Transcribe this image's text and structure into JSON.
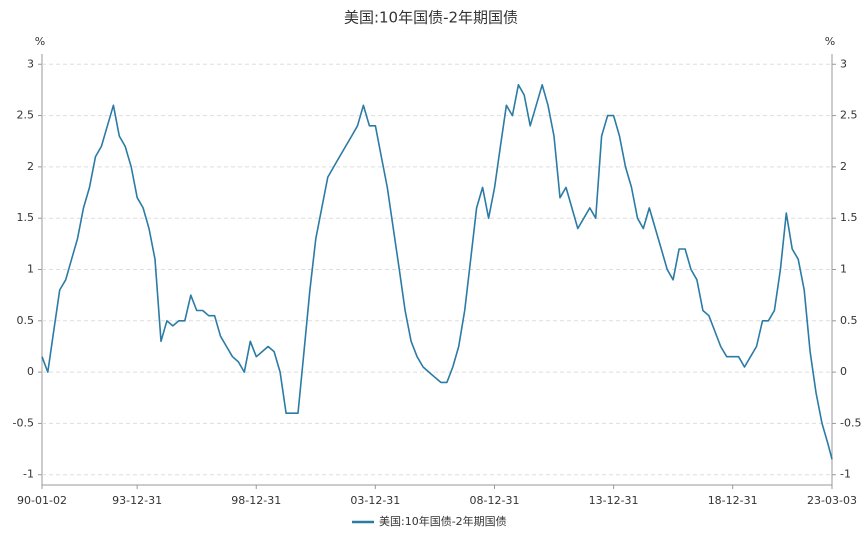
{
  "chart_data": {
    "type": "line",
    "title": "美国:10年国债-2年期国债",
    "y_unit": "%",
    "x": [
      "90-01-02",
      "90-04-01",
      "90-07-01",
      "90-10-01",
      "91-01-01",
      "91-04-01",
      "91-07-01",
      "91-10-01",
      "92-01-01",
      "92-04-01",
      "92-07-01",
      "92-10-01",
      "93-01-01",
      "93-04-01",
      "93-07-01",
      "93-10-01",
      "94-01-01",
      "94-04-01",
      "94-07-01",
      "94-10-01",
      "95-01-01",
      "95-04-01",
      "95-07-01",
      "95-10-01",
      "96-01-01",
      "96-04-01",
      "96-07-01",
      "96-10-01",
      "97-01-01",
      "97-04-01",
      "97-07-01",
      "97-10-01",
      "98-01-01",
      "98-04-01",
      "98-07-01",
      "98-10-01",
      "99-01-01",
      "99-04-01",
      "99-07-01",
      "99-10-01",
      "00-01-01",
      "00-04-01",
      "00-07-01",
      "00-10-01",
      "01-01-01",
      "01-04-01",
      "01-07-01",
      "01-10-01",
      "02-01-01",
      "02-04-01",
      "02-07-01",
      "02-10-01",
      "03-01-01",
      "03-04-01",
      "03-07-01",
      "03-10-01",
      "04-01-01",
      "04-04-01",
      "04-07-01",
      "04-10-01",
      "05-01-01",
      "05-04-01",
      "05-07-01",
      "05-10-01",
      "06-01-01",
      "06-04-01",
      "06-07-01",
      "06-10-01",
      "07-01-01",
      "07-04-01",
      "07-07-01",
      "07-10-01",
      "08-01-01",
      "08-04-01",
      "08-07-01",
      "08-10-01",
      "09-01-01",
      "09-04-01",
      "09-07-01",
      "09-10-01",
      "10-01-01",
      "10-04-01",
      "10-07-01",
      "10-10-01",
      "11-01-01",
      "11-04-01",
      "11-07-01",
      "11-10-01",
      "12-01-01",
      "12-04-01",
      "12-07-01",
      "12-10-01",
      "13-01-01",
      "13-04-01",
      "13-07-01",
      "13-10-01",
      "14-01-01",
      "14-04-01",
      "14-07-01",
      "14-10-01",
      "15-01-01",
      "15-04-01",
      "15-07-01",
      "15-10-01",
      "16-01-01",
      "16-04-01",
      "16-07-01",
      "16-10-01",
      "17-01-01",
      "17-04-01",
      "17-07-01",
      "17-10-01",
      "18-01-01",
      "18-04-01",
      "18-07-01",
      "18-10-01",
      "19-01-01",
      "19-04-01",
      "19-07-01",
      "19-10-01",
      "20-01-01",
      "20-04-01",
      "20-07-01",
      "20-10-01",
      "21-01-01",
      "21-04-01",
      "21-07-01",
      "21-10-01",
      "22-01-01",
      "22-04-01",
      "22-07-01",
      "22-10-01",
      "23-01-01",
      "23-03-03"
    ],
    "series": [
      {
        "name": "美国:10年国债-2年期国债",
        "color": "#2b7ba5",
        "values": [
          0.15,
          0.0,
          0.4,
          0.8,
          0.9,
          1.1,
          1.3,
          1.6,
          1.8,
          2.1,
          2.2,
          2.4,
          2.6,
          2.3,
          2.2,
          2.0,
          1.7,
          1.6,
          1.4,
          1.1,
          0.3,
          0.5,
          0.45,
          0.5,
          0.5,
          0.75,
          0.6,
          0.6,
          0.55,
          0.55,
          0.35,
          0.25,
          0.15,
          0.1,
          0.0,
          0.3,
          0.15,
          0.2,
          0.25,
          0.2,
          0.0,
          -0.4,
          -0.4,
          -0.4,
          0.2,
          0.8,
          1.3,
          1.6,
          1.9,
          2.0,
          2.1,
          2.2,
          2.3,
          2.4,
          2.6,
          2.4,
          2.4,
          2.1,
          1.8,
          1.4,
          1.0,
          0.6,
          0.3,
          0.15,
          0.05,
          0.0,
          -0.05,
          -0.1,
          -0.1,
          0.05,
          0.25,
          0.6,
          1.1,
          1.6,
          1.8,
          1.5,
          1.8,
          2.2,
          2.6,
          2.5,
          2.8,
          2.7,
          2.4,
          2.6,
          2.8,
          2.6,
          2.3,
          1.7,
          1.8,
          1.6,
          1.4,
          1.5,
          1.6,
          1.5,
          2.3,
          2.5,
          2.5,
          2.3,
          2.0,
          1.8,
          1.5,
          1.4,
          1.6,
          1.4,
          1.2,
          1.0,
          0.9,
          1.2,
          1.2,
          1.0,
          0.9,
          0.6,
          0.55,
          0.4,
          0.25,
          0.15,
          0.15,
          0.15,
          0.05,
          0.15,
          0.25,
          0.5,
          0.5,
          0.6,
          1.0,
          1.55,
          1.2,
          1.1,
          0.8,
          0.2,
          -0.2,
          -0.5,
          -0.7,
          -0.85
        ]
      }
    ],
    "xlim": [
      "90-01-02",
      "23-03-03"
    ],
    "xticks": [
      "90-01-02",
      "93-12-31",
      "98-12-31",
      "03-12-31",
      "08-12-31",
      "13-12-31",
      "18-12-31",
      "23-03-03"
    ],
    "ylim": [
      -1.1,
      3.1
    ],
    "yticks": [
      -1,
      -0.5,
      0,
      0.5,
      1,
      1.5,
      2,
      2.5,
      3
    ],
    "grid": true
  }
}
